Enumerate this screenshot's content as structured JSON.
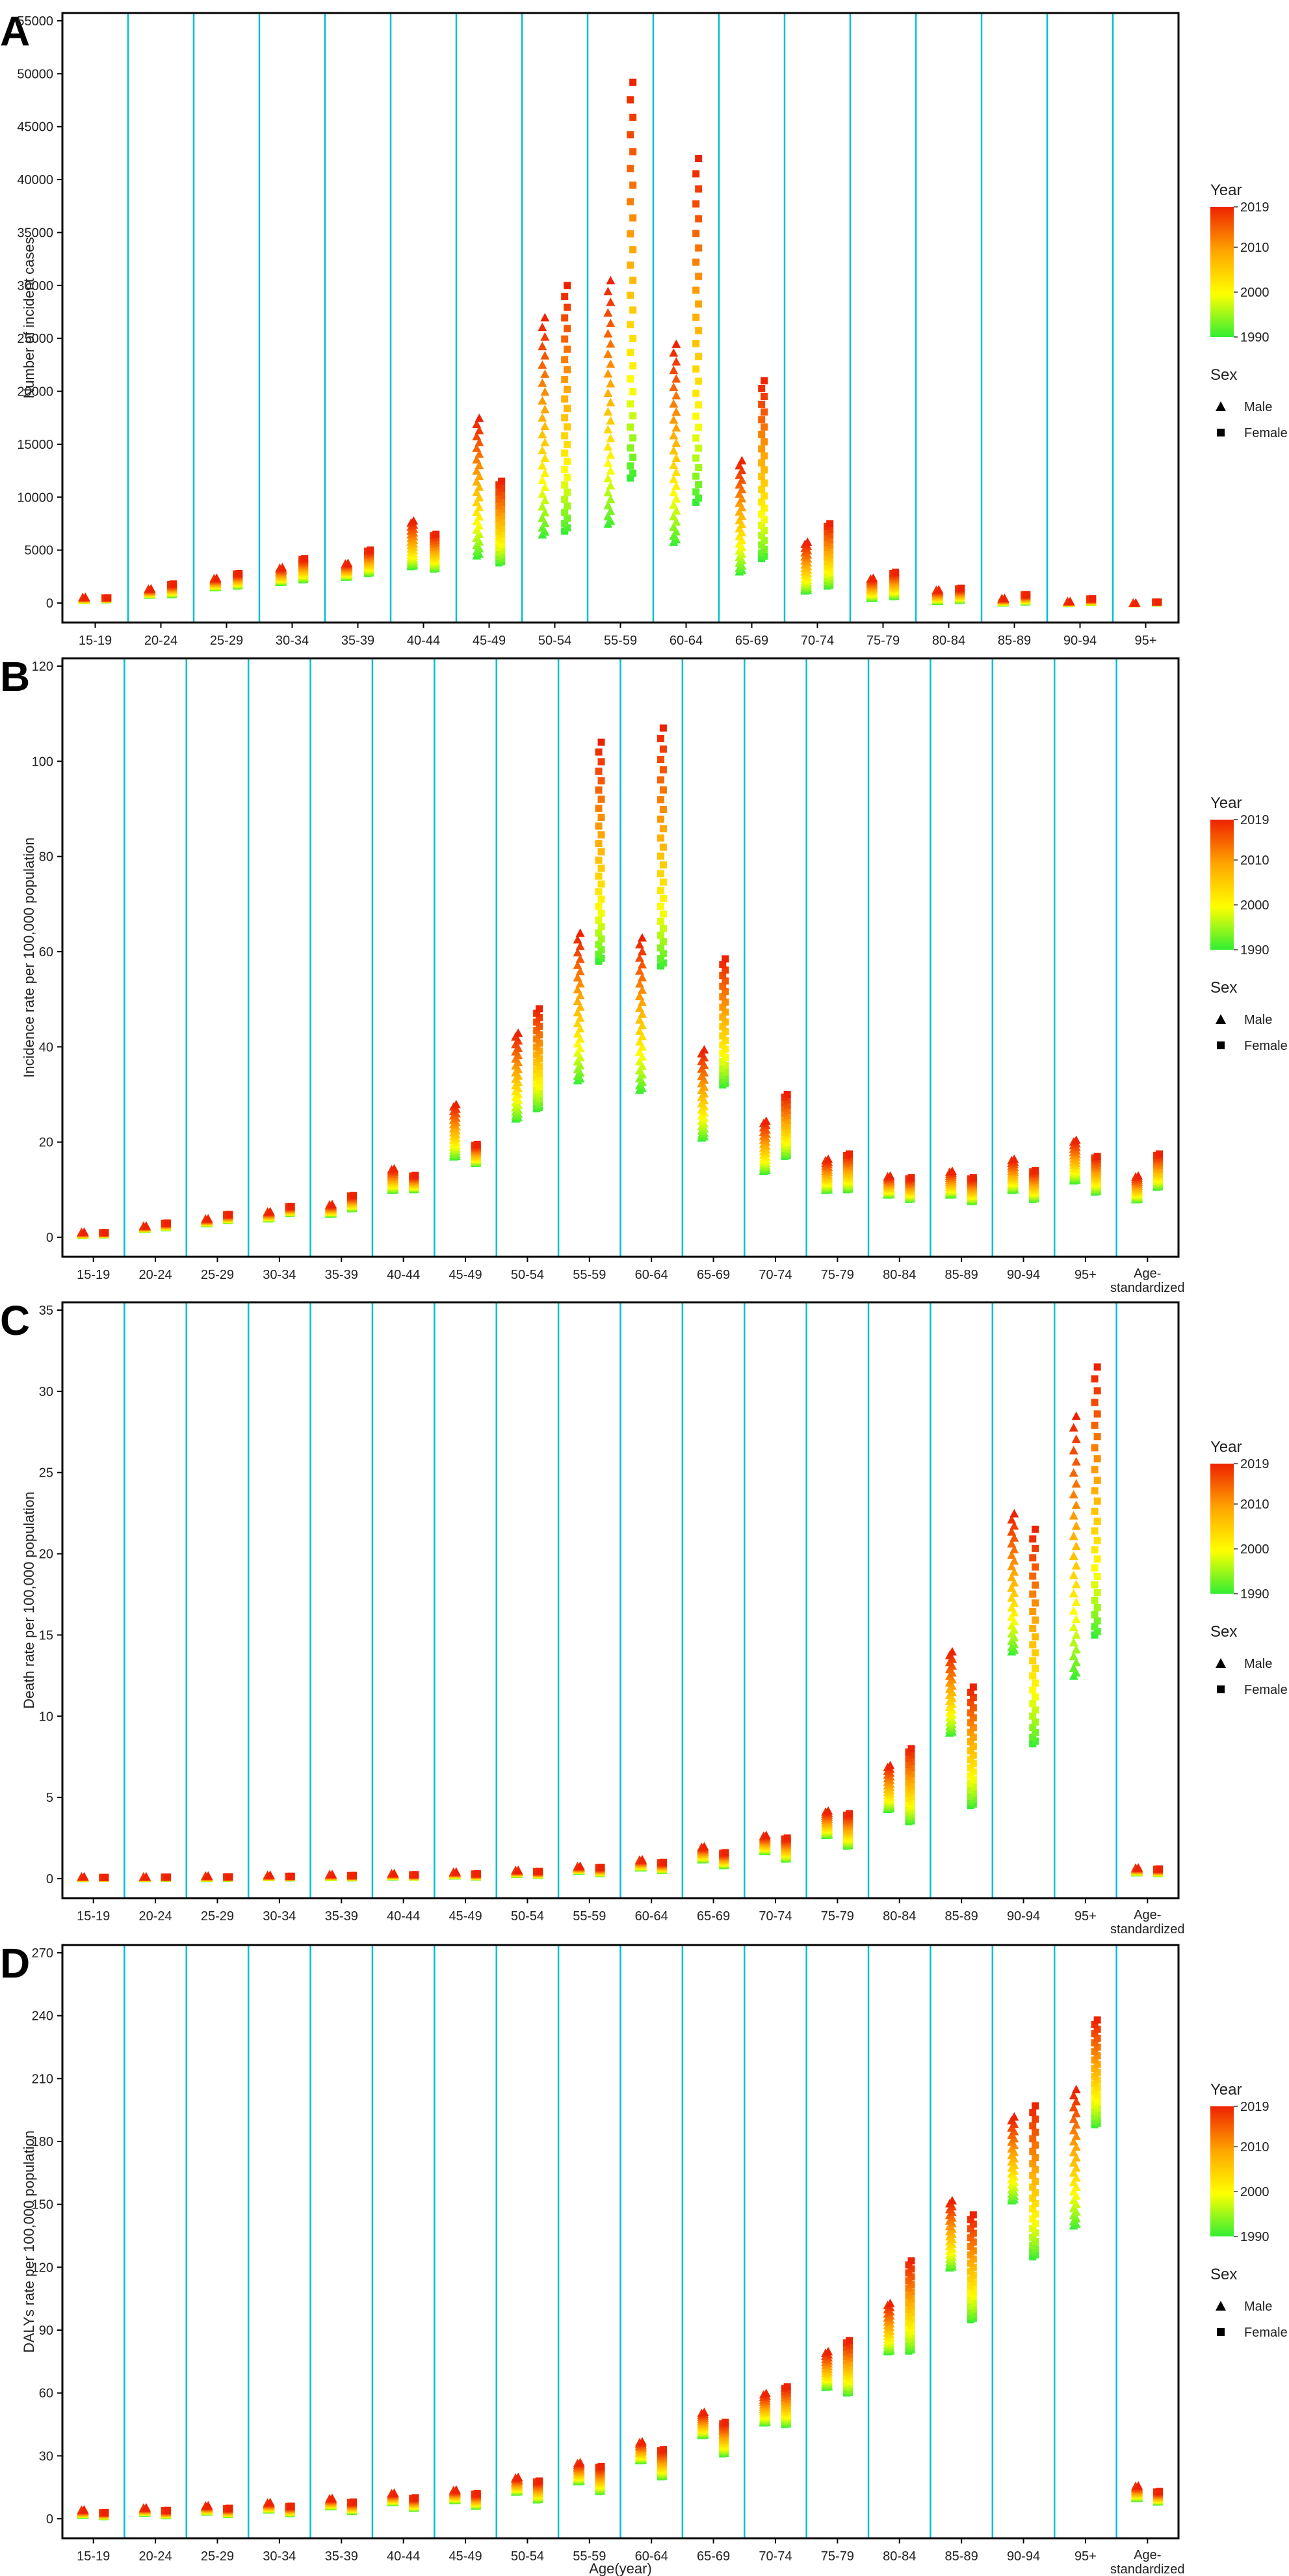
{
  "figure": {
    "xlabel": "Age(year)"
  },
  "legend": {
    "year_title": "Year",
    "year_ticks": [
      "2019",
      "2010",
      "2000",
      "1990"
    ],
    "year_range": [
      1990,
      2019
    ],
    "sex_title": "Sex",
    "sex_entries": [
      {
        "name": "Male",
        "marker": "triangle"
      },
      {
        "name": "Female",
        "marker": "square"
      }
    ],
    "colors": {
      "low": "#33ee33",
      "mid": "#ffff00",
      "mid2": "#ffa500",
      "high": "#ee2200",
      "divider": "#00c0d0"
    }
  },
  "chart_data": [
    {
      "panel": "A",
      "type": "scatter",
      "ylabel": "Number of incident cases",
      "ylim": [
        0,
        55000
      ],
      "yticks": [
        0,
        5000,
        10000,
        15000,
        20000,
        25000,
        30000,
        35000,
        40000,
        45000,
        50000,
        55000
      ],
      "categories": [
        "15-19",
        "20-24",
        "25-29",
        "30-34",
        "35-39",
        "40-44",
        "45-49",
        "50-54",
        "55-59",
        "60-64",
        "65-69",
        "70-74",
        "75-79",
        "80-84",
        "85-89",
        "90-94",
        "95+"
      ],
      "series": [
        {
          "name": "Male",
          "low": [
            300,
            800,
            1500,
            2000,
            2500,
            3500,
            4500,
            6500,
            7500,
            5800,
            3000,
            1200,
            500,
            200,
            60,
            20,
            5
          ],
          "high": [
            600,
            1400,
            2400,
            3400,
            3800,
            7800,
            17500,
            27000,
            30500,
            24500,
            13500,
            5800,
            2400,
            1300,
            500,
            200,
            50
          ]
        },
        {
          "name": "Female",
          "low": [
            300,
            800,
            1600,
            2200,
            2800,
            3200,
            3800,
            6800,
            11800,
            9500,
            4200,
            1600,
            600,
            250,
            100,
            40,
            10
          ],
          "high": [
            500,
            1800,
            2800,
            4200,
            5000,
            6500,
            11500,
            30000,
            49200,
            42000,
            21000,
            7500,
            2900,
            1400,
            800,
            400,
            100
          ]
        }
      ]
    },
    {
      "panel": "B",
      "type": "scatter",
      "ylabel": "Incidence rate per 100,000 population",
      "ylim": [
        0,
        120
      ],
      "yticks": [
        0,
        20,
        40,
        60,
        80,
        100,
        120
      ],
      "categories": [
        "15-19",
        "20-24",
        "25-29",
        "30-34",
        "35-39",
        "40-44",
        "45-49",
        "50-54",
        "55-59",
        "60-64",
        "65-69",
        "70-74",
        "75-79",
        "80-84",
        "85-89",
        "90-94",
        "95+",
        "Age-standardized"
      ],
      "series": [
        {
          "name": "Male",
          "low": [
            0.5,
            1.8,
            3.0,
            4.0,
            5.0,
            10.0,
            17.0,
            25.0,
            33.0,
            31.0,
            21.0,
            14.0,
            10.0,
            9.0,
            9.0,
            10.0,
            12.0,
            8.0
          ],
          "high": [
            1.2,
            2.5,
            4.0,
            5.5,
            7.0,
            14.5,
            28.0,
            43.0,
            64.0,
            63.0,
            39.5,
            24.5,
            16.5,
            13.0,
            14.0,
            16.5,
            20.5,
            13.0
          ]
        },
        {
          "name": "Female",
          "low": [
            0.5,
            2.0,
            3.5,
            5.0,
            6.0,
            10.0,
            15.5,
            27.0,
            58.0,
            57.0,
            32.0,
            17.0,
            10.0,
            8.0,
            7.5,
            8.0,
            9.5,
            10.5
          ],
          "high": [
            1.0,
            3.0,
            4.8,
            6.5,
            8.8,
            13.0,
            19.5,
            48.0,
            104.0,
            107.0,
            58.5,
            30.0,
            17.5,
            12.5,
            12.5,
            14.0,
            17.0,
            17.5
          ]
        }
      ]
    },
    {
      "panel": "C",
      "type": "scatter",
      "ylabel": "Death rate per 100,000 population",
      "ylim": [
        0,
        35
      ],
      "yticks": [
        0,
        5,
        10,
        15,
        20,
        25,
        30,
        35
      ],
      "categories": [
        "15-19",
        "20-24",
        "25-29",
        "30-34",
        "35-39",
        "40-44",
        "45-49",
        "50-54",
        "55-59",
        "60-64",
        "65-69",
        "70-74",
        "75-79",
        "80-84",
        "85-89",
        "90-94",
        "95+",
        "Age-standardized"
      ],
      "series": [
        {
          "name": "Male",
          "low": [
            0.05,
            0.05,
            0.05,
            0.1,
            0.1,
            0.15,
            0.2,
            0.3,
            0.5,
            0.7,
            1.2,
            1.7,
            2.7,
            4.3,
            9.0,
            14.0,
            12.5,
            0.4
          ],
          "high": [
            0.15,
            0.15,
            0.2,
            0.25,
            0.3,
            0.35,
            0.45,
            0.55,
            0.8,
            1.2,
            2.0,
            2.7,
            4.2,
            7.0,
            14.0,
            22.5,
            28.5,
            0.7
          ]
        },
        {
          "name": "Female",
          "low": [
            0.02,
            0.03,
            0.03,
            0.05,
            0.05,
            0.08,
            0.1,
            0.2,
            0.3,
            0.5,
            0.8,
            1.2,
            2.0,
            3.5,
            4.5,
            8.3,
            15.0,
            0.3
          ],
          "high": [
            0.08,
            0.1,
            0.12,
            0.15,
            0.2,
            0.25,
            0.3,
            0.45,
            0.7,
            1.0,
            1.6,
            2.5,
            4.0,
            8.0,
            11.8,
            21.5,
            31.5,
            0.6
          ]
        }
      ]
    },
    {
      "panel": "D",
      "type": "scatter",
      "ylabel": "DALYs rate per 100,000 population",
      "xlabel": "Age(year)",
      "ylim": [
        0,
        270
      ],
      "yticks": [
        0,
        30,
        60,
        90,
        120,
        150,
        180,
        210,
        240,
        270
      ],
      "categories": [
        "15-19",
        "20-24",
        "25-29",
        "30-34",
        "35-39",
        "40-44",
        "45-49",
        "50-54",
        "55-59",
        "60-64",
        "65-69",
        "70-74",
        "75-79",
        "80-84",
        "85-89",
        "90-94",
        "95+",
        "Age-standardized"
      ],
      "series": [
        {
          "name": "Male",
          "low": [
            2.0,
            3.0,
            3.5,
            4.5,
            6.0,
            8.0,
            9.0,
            13.0,
            18.0,
            28.0,
            40.0,
            46.0,
            63.0,
            80.0,
            120.0,
            152.0,
            140.0,
            10.0
          ],
          "high": [
            4.5,
            5.5,
            6.5,
            8.0,
            10.0,
            12.5,
            14.0,
            20.0,
            27.0,
            37.0,
            51.0,
            60.0,
            80.0,
            103.0,
            152.0,
            192.0,
            205.0,
            16.0
          ]
        },
        {
          "name": "Female",
          "low": [
            1.0,
            1.5,
            2.0,
            2.5,
            3.5,
            5.0,
            6.0,
            9.0,
            13.0,
            20.0,
            31.0,
            45.0,
            60.0,
            80.0,
            95.0,
            125.0,
            188.0,
            8.0
          ],
          "high": [
            3.0,
            4.0,
            5.0,
            6.0,
            8.0,
            10.0,
            12.0,
            18.0,
            25.0,
            33.0,
            46.0,
            63.0,
            85.0,
            123.0,
            145.0,
            197.0,
            238.0,
            13.0
          ]
        }
      ]
    }
  ]
}
